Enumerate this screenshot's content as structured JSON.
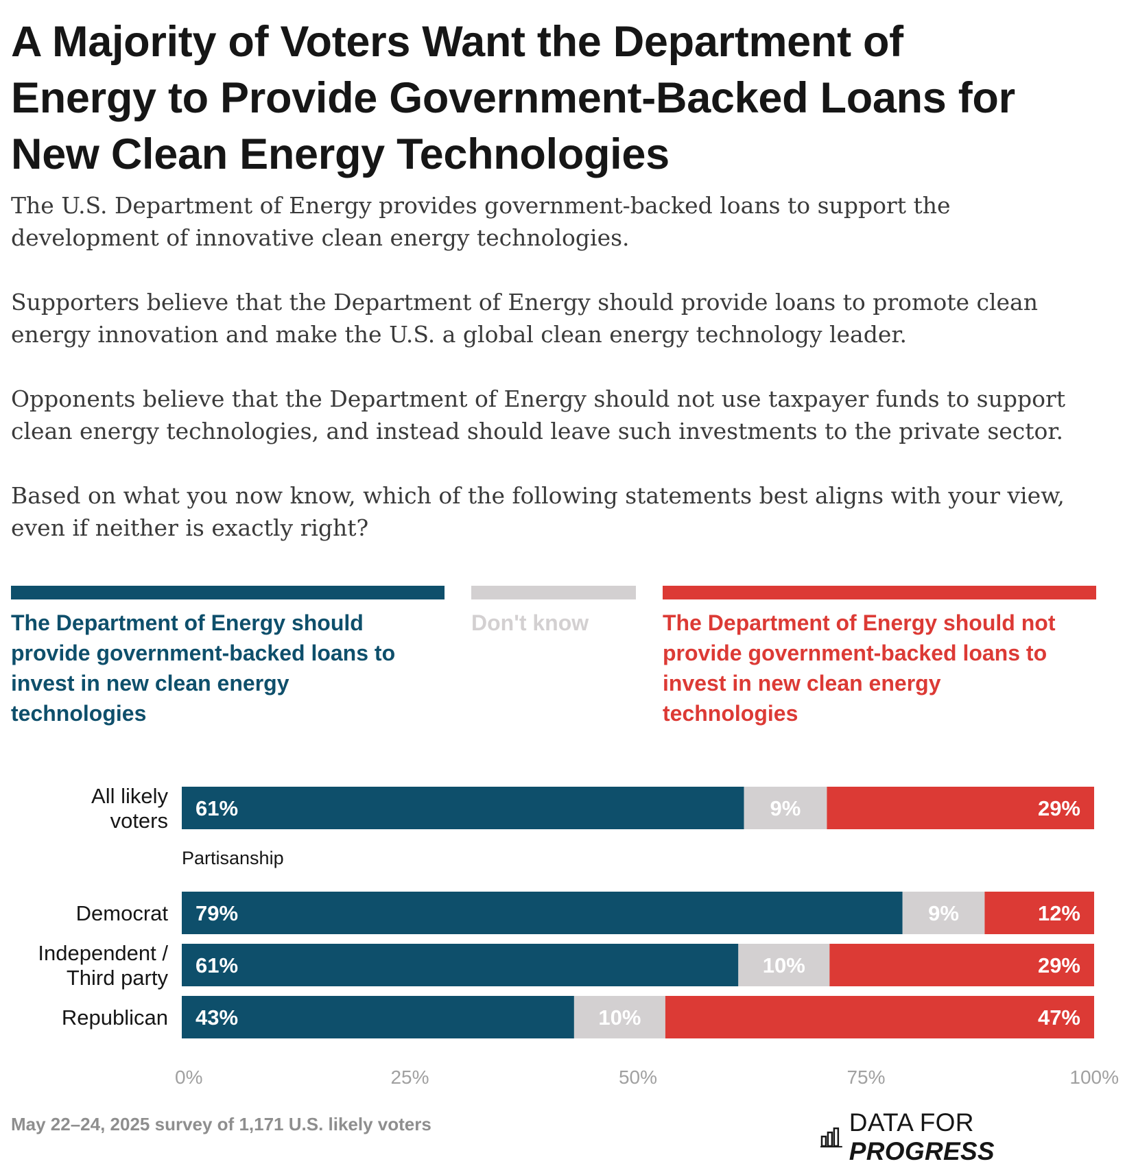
{
  "title": {
    "line1": "A Majority of Voters Want the Department of",
    "line2": "Energy to Provide Government-Backed Loans for",
    "line3": "New Clean Energy Technologies"
  },
  "intro": {
    "p1": [
      "The U.S. Department of Energy provides government-backed loans to support the",
      "development of innovative clean energy technologies."
    ],
    "p2": [
      "Supporters believe that the Department of Energy should provide loans to promote clean",
      "energy innovation and make the U.S. a global clean energy technology leader."
    ],
    "p3": [
      "Opponents believe that the Department of Energy should not use taxpayer funds to support",
      "clean energy technologies, and instead should leave such investments to the private sector."
    ],
    "p4": [
      "Based on what you now know, which of the following statements best aligns with your view,",
      "even if neither is exactly right?"
    ]
  },
  "legend": {
    "support": [
      "The Department of Energy should",
      "provide government-backed loans to",
      "invest in new clean energy",
      "technologies"
    ],
    "dont_know": "Don't know",
    "oppose": [
      "The Department of Energy should not",
      "provide government-backed loans to",
      "invest in new clean energy",
      "technologies"
    ]
  },
  "colors": {
    "support": "#0e4f6b",
    "dont_know": "#d3d0d1",
    "oppose": "#dc3a35",
    "axis": "#a0a0a0",
    "text": "#161616"
  },
  "chart_data": {
    "type": "bar",
    "orientation": "horizontal",
    "stacked": true,
    "categories": [
      [
        "All likely",
        "voters"
      ],
      [
        "Democrat"
      ],
      [
        "Independent /",
        "Third party"
      ],
      [
        "Republican"
      ]
    ],
    "group_label": "Partisanship",
    "series": [
      {
        "name": "The Department of Energy should provide government-backed loans to invest in new clean energy technologies",
        "values": [
          61,
          79,
          61,
          43
        ],
        "labels": [
          "61%",
          "79%",
          "61%",
          "43%"
        ]
      },
      {
        "name": "Don't know",
        "values": [
          9,
          9,
          10,
          10
        ],
        "labels": [
          "9%",
          "9%",
          "10%",
          "10%"
        ]
      },
      {
        "name": "The Department of Energy should not provide government-backed loans to invest in new clean energy technologies",
        "values": [
          29,
          12,
          29,
          47
        ],
        "labels": [
          "29%",
          "12%",
          "29%",
          "47%"
        ]
      }
    ],
    "xlim": [
      0,
      100
    ],
    "xticks": [
      "0%",
      "25%",
      "50%",
      "75%",
      "100%"
    ]
  },
  "footer": {
    "note": "May 22–24, 2025 survey of 1,171 U.S. likely voters",
    "brand_light": "DATA FOR",
    "brand_bold": "PROGRESS"
  }
}
